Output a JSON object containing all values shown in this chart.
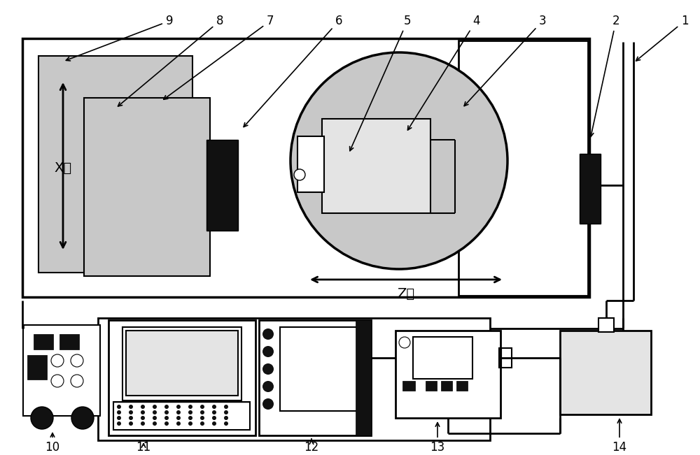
{
  "bg_color": "#ffffff",
  "lc": "#000000",
  "gray": "#c8c8c8",
  "light_gray": "#e4e4e4",
  "dark": "#111111",
  "figsize": [
    10.0,
    6.51
  ],
  "dpi": 100,
  "x_axis_label": "X轴",
  "z_axis_label": "Z轴"
}
